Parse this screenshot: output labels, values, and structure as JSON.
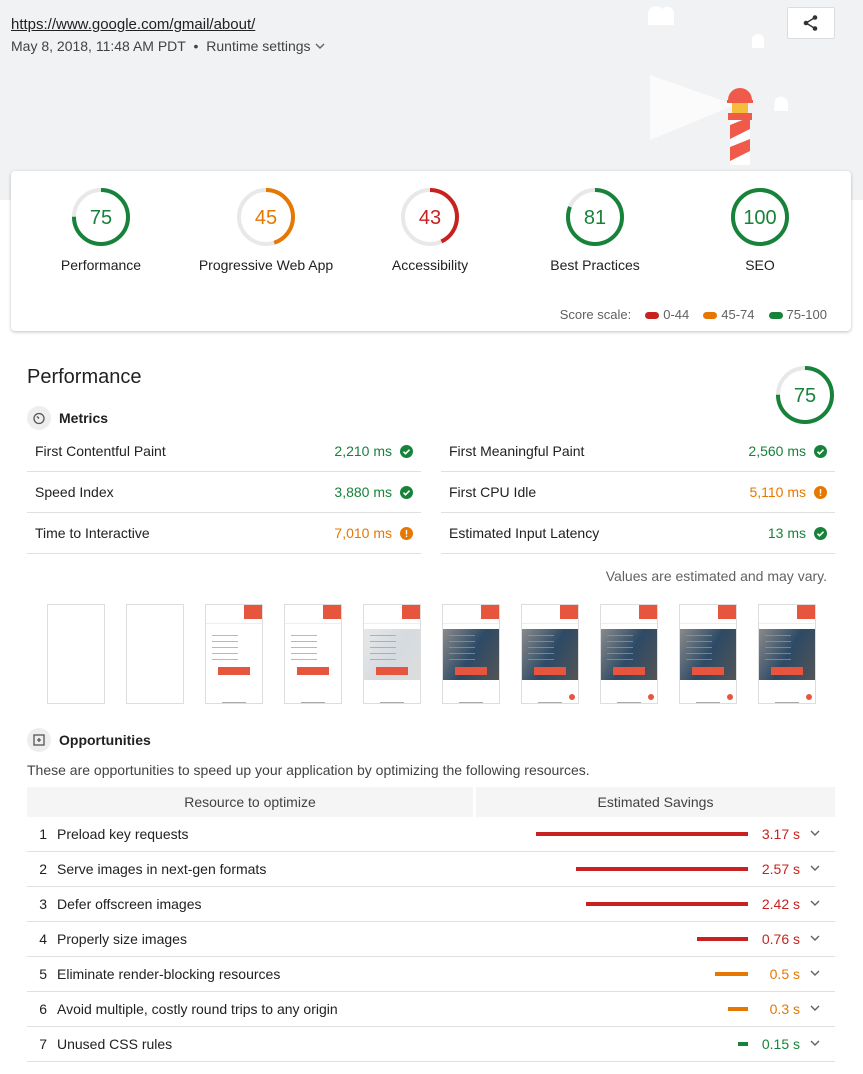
{
  "header": {
    "url": "https://www.google.com/gmail/about/",
    "timestamp": "May 8, 2018, 11:48 AM PDT",
    "separator": "•",
    "runtime_settings": "Runtime settings",
    "share_icon": "share-icon"
  },
  "colors": {
    "pass": "#178239",
    "average": "#e67700",
    "fail": "#c7221f",
    "bar_fail": "#c7221f",
    "bar_average": "#e67700",
    "bar_pass": "#178239"
  },
  "categories": [
    {
      "label": "Performance",
      "score": 75,
      "status": "pass"
    },
    {
      "label": "Progressive Web App",
      "score": 45,
      "status": "average"
    },
    {
      "label": "Accessibility",
      "score": 43,
      "status": "fail"
    },
    {
      "label": "Best Practices",
      "score": 81,
      "status": "pass"
    },
    {
      "label": "SEO",
      "score": 100,
      "status": "pass"
    }
  ],
  "score_scale": {
    "label": "Score scale:",
    "ranges": [
      "0-44",
      "45-74",
      "75-100"
    ]
  },
  "performance": {
    "title": "Performance",
    "score": 75,
    "metrics_title": "Metrics",
    "metrics": [
      {
        "label": "First Contentful Paint",
        "value": "2,210 ms",
        "status": "pass"
      },
      {
        "label": "First Meaningful Paint",
        "value": "2,560 ms",
        "status": "pass"
      },
      {
        "label": "Speed Index",
        "value": "3,880 ms",
        "status": "pass"
      },
      {
        "label": "First CPU Idle",
        "value": "5,110 ms",
        "status": "average"
      },
      {
        "label": "Time to Interactive",
        "value": "7,010 ms",
        "status": "average"
      },
      {
        "label": "Estimated Input Latency",
        "value": "13 ms",
        "status": "pass"
      }
    ],
    "note": "Values are estimated and may vary.",
    "filmstrip_frames": 10,
    "opportunities_title": "Opportunities",
    "opportunities_desc": "These are opportunities to speed up your application by optimizing the following resources.",
    "columns": [
      "Resource to optimize",
      "Estimated Savings"
    ],
    "opportunities": [
      {
        "num": "1",
        "label": "Preload key requests",
        "savings": "3.17 s",
        "seconds": 3.17,
        "status": "fail"
      },
      {
        "num": "2",
        "label": "Serve images in next-gen formats",
        "savings": "2.57 s",
        "seconds": 2.57,
        "status": "fail"
      },
      {
        "num": "3",
        "label": "Defer offscreen images",
        "savings": "2.42 s",
        "seconds": 2.42,
        "status": "fail"
      },
      {
        "num": "4",
        "label": "Properly size images",
        "savings": "0.76 s",
        "seconds": 0.76,
        "status": "fail"
      },
      {
        "num": "5",
        "label": "Eliminate render-blocking resources",
        "savings": "0.5 s",
        "seconds": 0.5,
        "status": "average"
      },
      {
        "num": "6",
        "label": "Avoid multiple, costly round trips to any origin",
        "savings": "0.3 s",
        "seconds": 0.3,
        "status": "average"
      },
      {
        "num": "7",
        "label": "Unused CSS rules",
        "savings": "0.15 s",
        "seconds": 0.15,
        "status": "pass"
      }
    ]
  }
}
